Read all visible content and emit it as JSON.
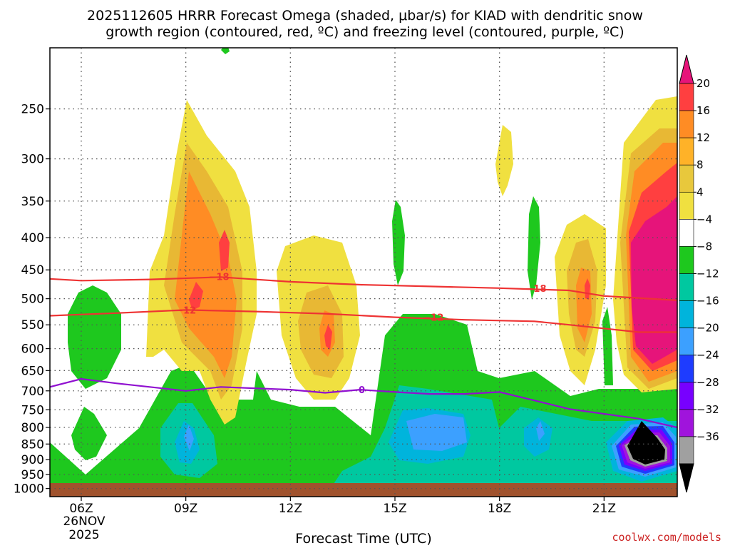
{
  "chart_data": {
    "type": "heatmap",
    "title_line1": "2025112605 HRRR Forecast Omega (shaded, μbar/s) for KIAD with dendritic snow",
    "title_line2": "growth region (contoured, red, ºC) and freezing level (contoured, purple, ºC)",
    "xlabel": "Forecast Time (UTC)",
    "credit": "coolwx.com/models",
    "x_ticks": [
      {
        "hour": 6,
        "label": "06Z"
      },
      {
        "hour": 9,
        "label": "09Z"
      },
      {
        "hour": 12,
        "label": "12Z"
      },
      {
        "hour": 15,
        "label": "15Z"
      },
      {
        "hour": 18,
        "label": "18Z"
      },
      {
        "hour": 21,
        "label": "21Z"
      }
    ],
    "date_label_day": "26NOV",
    "date_label_year": "2025",
    "xlim": [
      5.1,
      23.1
    ],
    "y_ticks": [
      250,
      300,
      350,
      400,
      450,
      500,
      550,
      600,
      650,
      700,
      750,
      800,
      850,
      900,
      950,
      1000
    ],
    "y_tick_labels": [
      "250",
      "300",
      "350",
      "400",
      "450",
      "500",
      "550",
      "600",
      "650",
      "700",
      "750",
      "800",
      "850",
      "900",
      "950",
      "1000"
    ],
    "ylim_hPa": [
      200,
      1030
    ],
    "colorbar_labels": [
      "20",
      "16",
      "12",
      "8",
      "4",
      "−4",
      "−8",
      "−12",
      "−16",
      "−20",
      "−24",
      "−28",
      "−32",
      "−36"
    ],
    "colorbar_colors": [
      "#ff3f40",
      "#ff8c24",
      "#ffb228",
      "#e8c83c",
      "#f0e040",
      "#ffffff",
      "#1ec81e",
      "#00c8a0",
      "#00b4dc",
      "#3ca0ff",
      "#1e3cff",
      "#7800ff",
      "#a014dc",
      "#a0a0a0"
    ],
    "colorbar_top_color": "#e6147a",
    "colorbar_bottom_color": "#000000",
    "contours": [
      {
        "name": "dgz-minus18",
        "label": "−18",
        "color": "#ee3333",
        "points": [
          [
            5.1,
            465
          ],
          [
            6,
            468
          ],
          [
            8,
            466
          ],
          [
            10,
            462
          ],
          [
            12,
            470
          ],
          [
            14,
            475
          ],
          [
            16,
            478
          ],
          [
            18,
            481
          ],
          [
            20,
            485
          ],
          [
            21,
            495
          ],
          [
            23.1,
            503
          ]
        ]
      },
      {
        "name": "dgz-minus12",
        "label": "−12",
        "color": "#ee3333",
        "points": [
          [
            5.1,
            532
          ],
          [
            7,
            527
          ],
          [
            9,
            521
          ],
          [
            11,
            524
          ],
          [
            13,
            528
          ],
          [
            15,
            535
          ],
          [
            17,
            540
          ],
          [
            19,
            543
          ],
          [
            20,
            550
          ],
          [
            22,
            565
          ],
          [
            23.1,
            565
          ]
        ]
      },
      {
        "name": "freezing-level",
        "label": "0",
        "color": "#9010d0",
        "points": [
          [
            5.1,
            690
          ],
          [
            6,
            670
          ],
          [
            7,
            681
          ],
          [
            9,
            700
          ],
          [
            10,
            690
          ],
          [
            12,
            697
          ],
          [
            13,
            705
          ],
          [
            14,
            697
          ],
          [
            15,
            703
          ],
          [
            16,
            708
          ],
          [
            17,
            708
          ],
          [
            18,
            703
          ],
          [
            19,
            725
          ],
          [
            20,
            748
          ],
          [
            22,
            775
          ],
          [
            23.1,
            800
          ]
        ]
      }
    ],
    "contour_labels": [
      {
        "text": "−18",
        "hour": 9.95,
        "p": 461,
        "color": "#ee3333"
      },
      {
        "text": "−18",
        "hour": 19.05,
        "p": 481,
        "color": "#ee3333"
      },
      {
        "text": "−12",
        "hour": 9.0,
        "p": 521,
        "color": "#ee3333"
      },
      {
        "text": "−12",
        "hour": 16.1,
        "p": 535,
        "color": "#ee3333"
      },
      {
        "text": "0",
        "hour": 14.05,
        "p": 697,
        "color": "#9010d0"
      }
    ]
  }
}
